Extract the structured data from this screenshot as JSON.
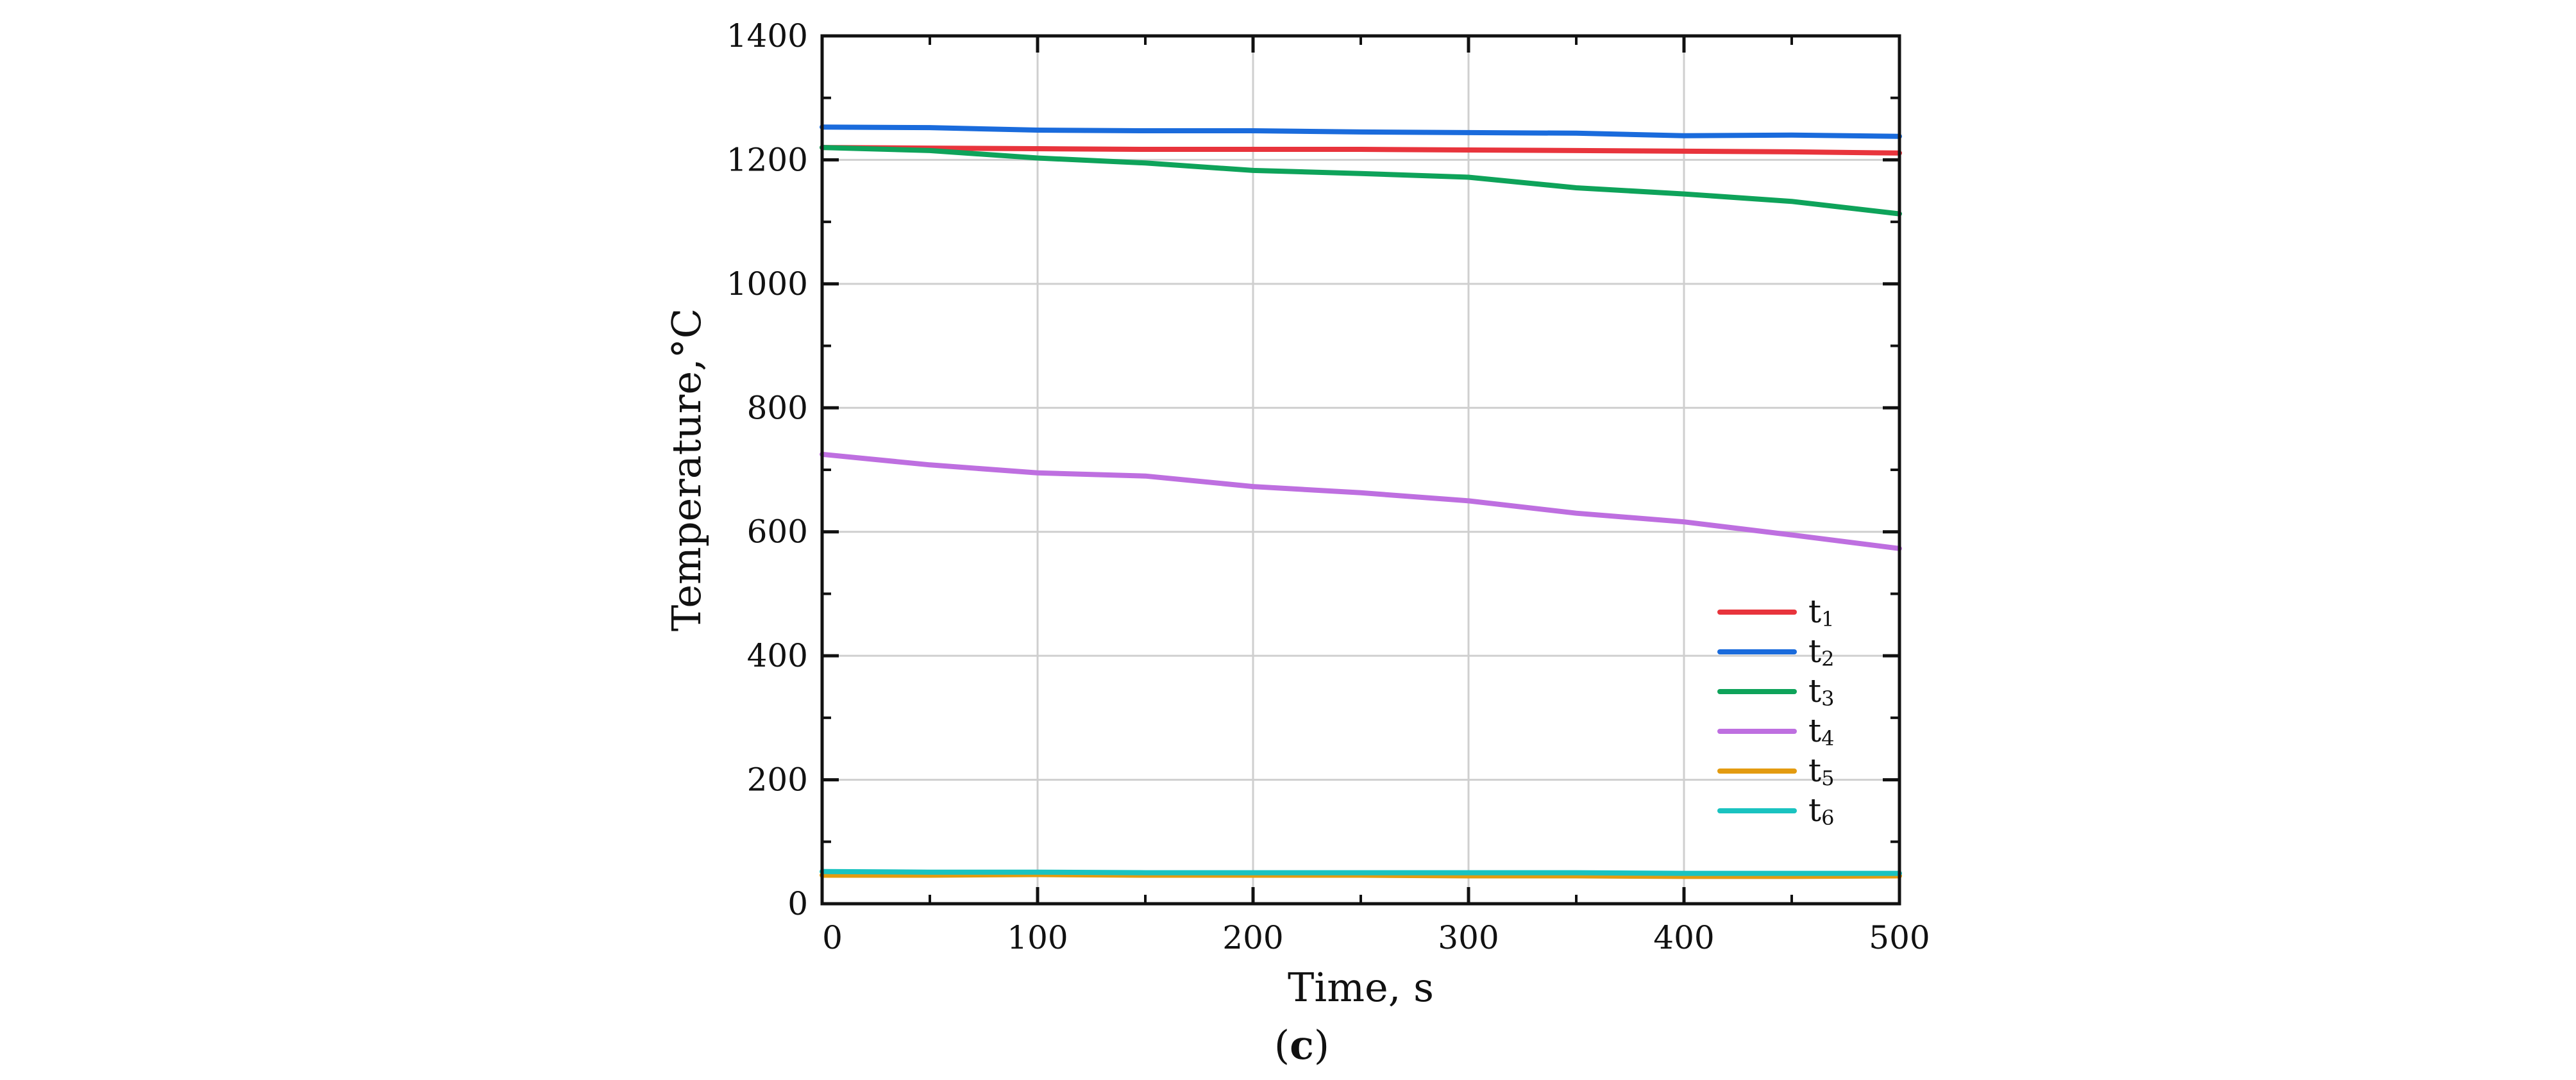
{
  "chart_data": {
    "type": "line",
    "title": "",
    "caption": {
      "open": "(",
      "letter": "c",
      "close": ")"
    },
    "xlabel": "Time, s",
    "ylabel": "Temperature,°C",
    "xlim": [
      0,
      500
    ],
    "ylim": [
      0,
      1400
    ],
    "grid": true,
    "legend_position": "lower-right",
    "xticks": [
      0,
      100,
      200,
      300,
      400,
      500
    ],
    "xtick_labels": [
      "0",
      "100",
      "200",
      "300",
      "400",
      "500"
    ],
    "yticks": [
      0,
      200,
      400,
      600,
      800,
      1000,
      1200,
      1400
    ],
    "ytick_labels": [
      "0",
      "200",
      "400",
      "600",
      "800",
      "1000",
      "1200",
      "1400"
    ],
    "x": [
      0,
      50,
      100,
      150,
      200,
      250,
      300,
      350,
      400,
      450,
      500
    ],
    "series": [
      {
        "name": "t1",
        "base": "t",
        "sub": "1",
        "color": "#e8343c",
        "values": [
          1220,
          1219,
          1218,
          1217,
          1217,
          1217,
          1216,
          1215,
          1214,
          1213,
          1211
        ]
      },
      {
        "name": "t2",
        "base": "t",
        "sub": "2",
        "color": "#1a6bdc",
        "values": [
          1253,
          1252,
          1248,
          1247,
          1247,
          1245,
          1244,
          1243,
          1239,
          1240,
          1238
        ]
      },
      {
        "name": "t3",
        "base": "t",
        "sub": "3",
        "color": "#0ea35a",
        "values": [
          1220,
          1215,
          1203,
          1195,
          1183,
          1178,
          1172,
          1155,
          1145,
          1133,
          1113
        ]
      },
      {
        "name": "t4",
        "base": "t",
        "sub": "4",
        "color": "#be6fe0",
        "values": [
          725,
          708,
          695,
          690,
          673,
          663,
          650,
          630,
          616,
          595,
          573
        ]
      },
      {
        "name": "t5",
        "base": "t",
        "sub": "5",
        "color": "#e39b10",
        "values": [
          46,
          46,
          47,
          46,
          46,
          46,
          45,
          45,
          44,
          44,
          45
        ]
      },
      {
        "name": "t6",
        "base": "t",
        "sub": "6",
        "color": "#1ac3c0",
        "values": [
          52,
          51,
          51,
          50,
          50,
          50,
          50,
          50,
          49,
          49,
          49
        ]
      }
    ]
  }
}
